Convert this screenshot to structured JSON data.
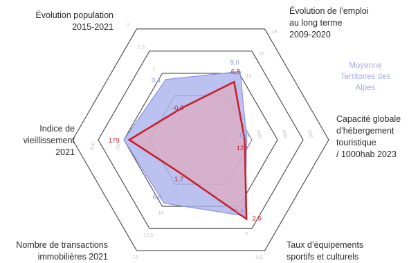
{
  "chart_data": {
    "type": "radar",
    "axes": [
      {
        "title": [
          "Évolution de l’emploi",
          "au long terme",
          "2009-2020"
        ],
        "ticks": [
          "12",
          "15",
          "18"
        ]
      },
      {
        "title": [
          "Capacité globale",
          "d’hébergement",
          "touristique",
          "/ 1000hab 2023"
        ],
        "ticks": [
          "300",
          "400",
          "500"
        ]
      },
      {
        "title": [
          "Taux d’équipements",
          "sportifs et culturels"
        ],
        "ticks": [
          "2,5",
          "3",
          "3,5"
        ]
      },
      {
        "title": [
          "Nombre de transactions",
          "immobilières 2021"
        ],
        "ticks": [
          "7,5",
          "10",
          "12,5",
          "15"
        ]
      },
      {
        "title": [
          "Indice de",
          "vieillissement",
          "2021"
        ],
        "ticks": [
          "200",
          "250",
          "300"
        ]
      },
      {
        "title": [
          "Évolution population",
          "2015-2021"
        ],
        "ticks": [
          "0,5",
          "1",
          "1,5",
          "2"
        ]
      }
    ],
    "center_ticks": [
      "2,5"
    ],
    "series": [
      {
        "name": "Moyenne Territoires des Alpes",
        "values": [
          9.0,
          134,
          2.4,
          6.8,
          200,
          0.4
        ],
        "labels": [
          "9,0",
          "134",
          "2,4",
          "6,8",
          "",
          "0,4"
        ]
      },
      {
        "name": "",
        "values": [
          6.8,
          120,
          2.5,
          1.7,
          179,
          -0.5
        ],
        "labels": [
          "6,8",
          "120",
          "2,5",
          "1,7",
          "179",
          "-0,5"
        ]
      }
    ],
    "legend": [
      "Moyenne",
      "Territoires des",
      "Alpes"
    ],
    "legend_position": "right",
    "colors": {
      "reference": "#a9b1ec",
      "reference_stroke": "#8d95e6",
      "series": "#c8202c",
      "grid": "#444444",
      "grid_inner": "#bdbdbd"
    }
  }
}
